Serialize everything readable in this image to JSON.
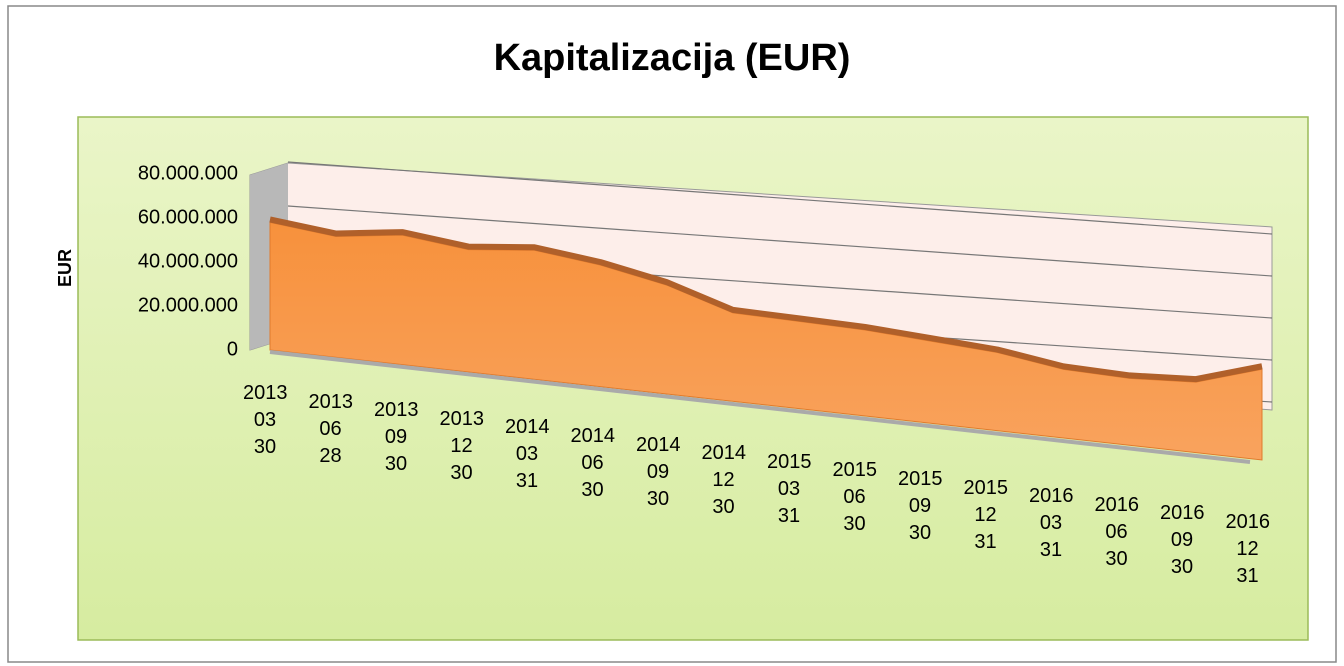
{
  "chart_data": {
    "type": "area3d",
    "title": "Kapitalizacija (EUR)",
    "y_label": "EUR",
    "categories": [
      "2013 03 30",
      "2013 06 28",
      "2013 09 30",
      "2013 12 30",
      "2014 03 31",
      "2014 06 30",
      "2014 09 30",
      "2014 12 30",
      "2015 03 31",
      "2015 06 30",
      "2015 09 30",
      "2015 12 31",
      "2016 03 31",
      "2016 06 30",
      "2016 09 30",
      "2016 12 31"
    ],
    "values": [
      58000000,
      54000000,
      57000000,
      53000000,
      55000000,
      51000000,
      45000000,
      36000000,
      35000000,
      34000000,
      32000000,
      30000000,
      26000000,
      25000000,
      26000000,
      33000000
    ],
    "color": "#f79646",
    "ylim": [
      0,
      80000000
    ],
    "yticks": [
      {
        "value": 0,
        "label": "0"
      },
      {
        "value": 20000000,
        "label": "20.000.000"
      },
      {
        "value": 40000000,
        "label": "40.000.000"
      },
      {
        "value": 60000000,
        "label": "60.000.000"
      },
      {
        "value": 80000000,
        "label": "80.000.000"
      }
    ],
    "grid": true
  }
}
